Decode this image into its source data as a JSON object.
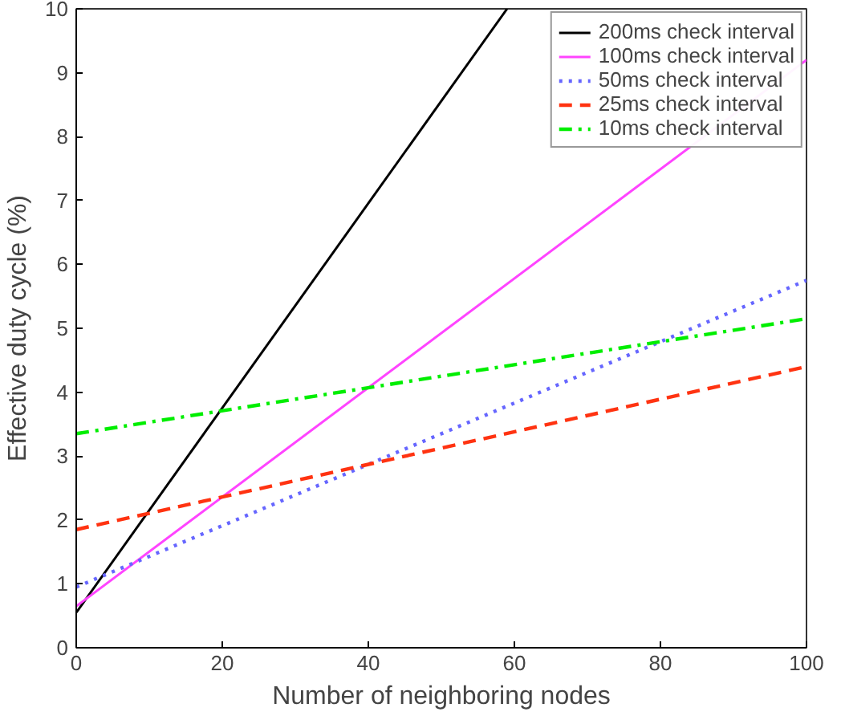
{
  "chart_data": {
    "type": "line",
    "xlabel": "Number of neighboring nodes",
    "ylabel": "Effective duty cycle (%)",
    "xlim": [
      0,
      100
    ],
    "ylim": [
      0,
      10
    ],
    "xticks": [
      0,
      20,
      40,
      60,
      80,
      100
    ],
    "yticks": [
      0,
      1,
      2,
      3,
      4,
      5,
      6,
      7,
      8,
      9,
      10
    ],
    "grid": false,
    "legend": "top right",
    "series": [
      {
        "name": "200ms check interval",
        "color": "#000000",
        "x": [
          0,
          59
        ],
        "values": [
          0.55,
          10
        ],
        "line_style": "solid"
      },
      {
        "name": "100ms check interval",
        "color": "#ff44ff",
        "x": [
          0,
          100
        ],
        "values": [
          0.65,
          9.2
        ],
        "line_style": "solid"
      },
      {
        "name": "50ms check interval",
        "color": "#6666ff",
        "x": [
          0,
          100
        ],
        "values": [
          0.95,
          5.75
        ],
        "line_style": "dotted"
      },
      {
        "name": "25ms check interval",
        "color": "#ff3311",
        "x": [
          0,
          100
        ],
        "values": [
          1.85,
          4.4
        ],
        "line_style": "dashed"
      },
      {
        "name": "10ms check interval",
        "color": "#00ee00",
        "x": [
          0,
          100
        ],
        "values": [
          3.35,
          5.15
        ],
        "line_style": "dashdot"
      }
    ]
  }
}
